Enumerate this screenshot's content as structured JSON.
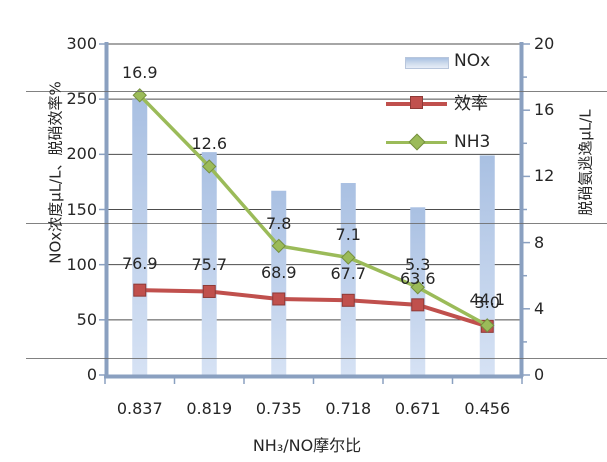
{
  "chart_data": {
    "type": "combo-bar-line",
    "categories": [
      "0.837",
      "0.819",
      "0.735",
      "0.718",
      "0.671",
      "0.456"
    ],
    "series": [
      {
        "name": "NOx",
        "type": "bar",
        "axis": "left",
        "values": [
          250,
          202,
          167,
          174,
          152,
          199
        ],
        "color_top": "#a9c0e2",
        "color_bottom": "#d6e2f4"
      },
      {
        "name": "效率",
        "type": "line",
        "axis": "left",
        "marker": "square",
        "values": [
          76.9,
          75.7,
          68.9,
          67.7,
          63.6,
          44.1
        ],
        "labels": [
          "76.9",
          "75.7",
          "68.9",
          "67.7",
          "63.6",
          "44.1"
        ],
        "color": "#c0504d",
        "marker_border": "#8e3a37"
      },
      {
        "name": "NH3",
        "type": "line",
        "axis": "right",
        "marker": "diamond",
        "values": [
          16.9,
          12.6,
          7.8,
          7.1,
          5.3,
          3.0
        ],
        "labels": [
          "16.9",
          "12.6",
          "7.8",
          "7.1",
          "5.3",
          "3.0"
        ],
        "color": "#9bbb59",
        "marker_border": "#758f3f"
      }
    ],
    "left_axis": {
      "title": "NOx浓度μL/L、脱硝效率%",
      "min": 0,
      "max": 300,
      "ticks": [
        0,
        50,
        100,
        150,
        200,
        250,
        300
      ]
    },
    "right_axis": {
      "title": "脱硝氨逃逸μL/L",
      "min": 0,
      "max": 20,
      "ticks": [
        0,
        4,
        8,
        12,
        16,
        20
      ],
      "minor_ticks": [
        2,
        6,
        10,
        14,
        18
      ]
    },
    "x_axis": {
      "title": "NH₃/NO摩尔比"
    },
    "legend": {
      "position": "top-right",
      "entries": [
        "NOx",
        "效率",
        "NH3"
      ]
    },
    "grid": true
  },
  "colors": {
    "grid": "#4d4d4d",
    "axis": "#8aa0c0",
    "text": "#262626",
    "rule_lines": "#6b6b6b"
  }
}
